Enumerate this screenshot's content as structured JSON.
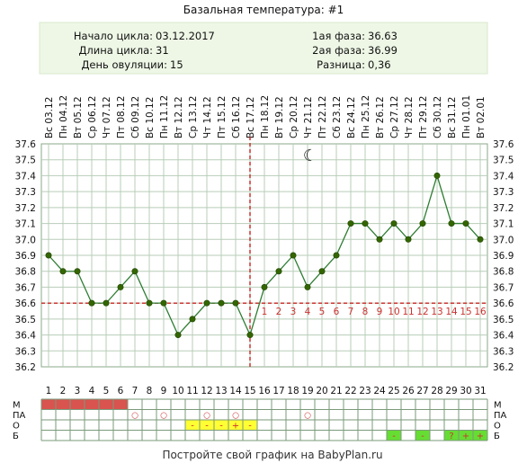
{
  "title": "Базальная температура: #1",
  "info": {
    "left": [
      {
        "label": "Начало цикла:",
        "value": "03.12.2017"
      },
      {
        "label": "Длина цикла:",
        "value": "31"
      },
      {
        "label": "День овуляции:",
        "value": "15"
      }
    ],
    "right": [
      {
        "label": "1ая фаза:",
        "value": "36.63"
      },
      {
        "label": "2ая фаза:",
        "value": "36.99"
      },
      {
        "label": "Разница:",
        "value": "0,36"
      }
    ]
  },
  "footer": "Постройте свой график на BabyPlan.ru",
  "colors": {
    "line": "#2e7d32",
    "point": "#336600",
    "grid": "#b8cdb8",
    "ref": "#cc2222",
    "menstruation": "#d9534f",
    "ovu": "#ffff33",
    "good": "#66dd33",
    "info_bg": "#eef7e6"
  },
  "chart_data": {
    "type": "line",
    "title": "Базальная температура: #1",
    "xlabel": "",
    "ylabel": "",
    "ylim": [
      36.2,
      37.6
    ],
    "yticks": [
      "36.2",
      "36.3",
      "36.4",
      "36.5",
      "36.6",
      "36.7",
      "36.8",
      "36.9",
      "37.0",
      "37.1",
      "37.2",
      "37.3",
      "37.4",
      "37.5",
      "37.6"
    ],
    "grid": true,
    "days": [
      "1",
      "2",
      "3",
      "4",
      "5",
      "6",
      "7",
      "8",
      "9",
      "10",
      "11",
      "12",
      "13",
      "14",
      "15",
      "16",
      "17",
      "18",
      "19",
      "20",
      "21",
      "22",
      "23",
      "24",
      "25",
      "26",
      "27",
      "28",
      "29",
      "30",
      "31"
    ],
    "dates": [
      "Вс 03.12",
      "Пн 04.12",
      "Вт 05.12",
      "Ср 06.12",
      "Чт 07.12",
      "Пт 08.12",
      "Сб 09.12",
      "Вс 10.12",
      "Пн 11.12",
      "Вт 12.12",
      "Ср 13.12",
      "Чт 14.12",
      "Пт 15.12",
      "Сб 16.12",
      "Вс 17.12",
      "Пн 18.12",
      "Вт 19.12",
      "Ср 20.12",
      "Чт 21.12",
      "Пт 22.12",
      "Сб 23.12",
      "Вс 24.12",
      "Пн 25.12",
      "Вт 26.12",
      "Ср 27.12",
      "Чт 28.12",
      "Пт 29.12",
      "Сб 30.12",
      "Вс 31.12",
      "Пн 01.01",
      "Вт 02.01"
    ],
    "series": [
      {
        "values": [
          36.9,
          36.8,
          36.8,
          36.6,
          36.6,
          36.7,
          36.8,
          36.6,
          36.6,
          36.4,
          36.5,
          36.6,
          36.6,
          36.6,
          36.4,
          36.7,
          36.8,
          36.9,
          36.7,
          36.8,
          36.9,
          37.1,
          37.1,
          37.0,
          37.1,
          37.0,
          37.1,
          37.4,
          37.1,
          37.1,
          37.0
        ]
      }
    ],
    "coverline": 36.6,
    "ovulation_day": 15,
    "post_ovulation_labels": [
      "1",
      "2",
      "3",
      "4",
      "5",
      "6",
      "7",
      "8",
      "9",
      "10",
      "11",
      "12",
      "13",
      "14",
      "15",
      "16"
    ],
    "moon_day": 19,
    "markers": {
      "row_labels": [
        "М",
        "ПА",
        "О",
        "Б"
      ],
      "M": [
        1,
        2,
        3,
        4,
        5,
        6
      ],
      "PA": [
        {
          "day": 7,
          "sym": "○"
        },
        {
          "day": 9,
          "sym": "○"
        },
        {
          "day": 12,
          "sym": "○"
        },
        {
          "day": 14,
          "sym": "○"
        },
        {
          "day": 19,
          "sym": "○"
        }
      ],
      "O": [
        {
          "day": 11,
          "sym": "-"
        },
        {
          "day": 12,
          "sym": "-"
        },
        {
          "day": 13,
          "sym": "-"
        },
        {
          "day": 14,
          "sym": "+"
        },
        {
          "day": 15,
          "sym": "-"
        }
      ],
      "B": [
        {
          "day": 25,
          "sym": "-"
        },
        {
          "day": 27,
          "sym": "-"
        },
        {
          "day": 29,
          "sym": "?"
        },
        {
          "day": 30,
          "sym": "+"
        },
        {
          "day": 31,
          "sym": "+"
        }
      ]
    }
  }
}
